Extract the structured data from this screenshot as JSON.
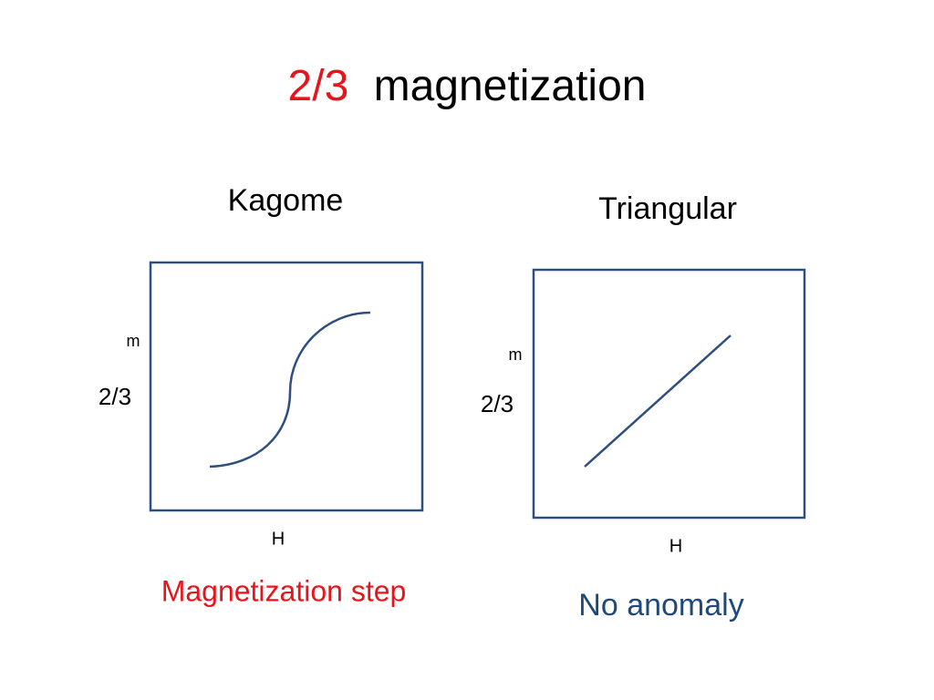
{
  "title": {
    "highlight": "2/3",
    "text": "magnetization"
  },
  "panels": [
    {
      "label": "Kagome",
      "y_axis": "m",
      "y_value": "2/3",
      "x_axis": "H",
      "caption": "Magnetization step"
    },
    {
      "label": "Triangular",
      "y_axis": "m",
      "y_value": "2/3",
      "x_axis": "H",
      "caption": "No anomaly"
    }
  ]
}
